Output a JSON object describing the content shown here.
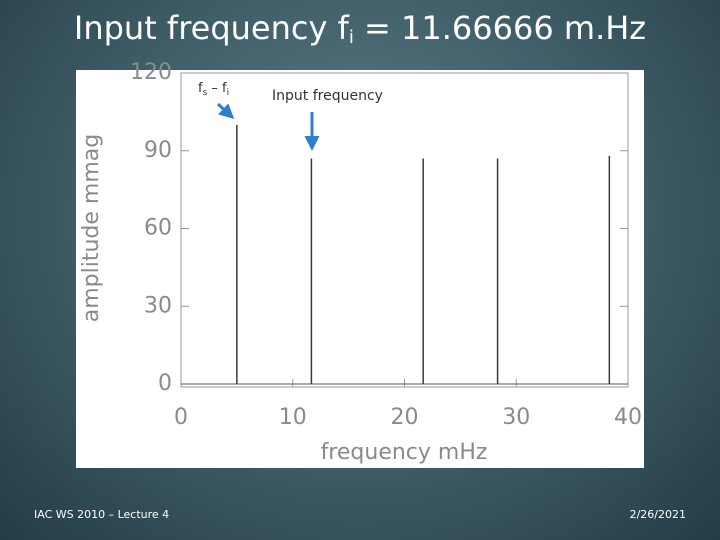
{
  "chart_data": {
    "type": "stem",
    "title": [
      "Input frequency f",
      "i",
      " = 11.66666 m.Hz"
    ],
    "xlabel": "frequency  mHz",
    "ylabel": "amplitude  mmag",
    "x": [
      5.0,
      11.67,
      21.67,
      28.33,
      38.33
    ],
    "values": [
      100,
      87,
      87,
      87,
      88
    ],
    "color": "#3a3a3a",
    "xlim": [
      0,
      40
    ],
    "xticks": [
      0,
      10,
      20,
      30,
      40
    ],
    "ylim": [
      0,
      120
    ],
    "yticks": [
      0,
      30,
      60,
      90,
      120
    ],
    "annotations": [
      {
        "parts": [
          "f",
          "s",
          " – f",
          "i"
        ]
      },
      {
        "parts": [
          "Input frequency"
        ]
      }
    ]
  },
  "footer": {
    "left": "IAC WS 2010 – Lecture 4",
    "right": "2/26/2021"
  }
}
